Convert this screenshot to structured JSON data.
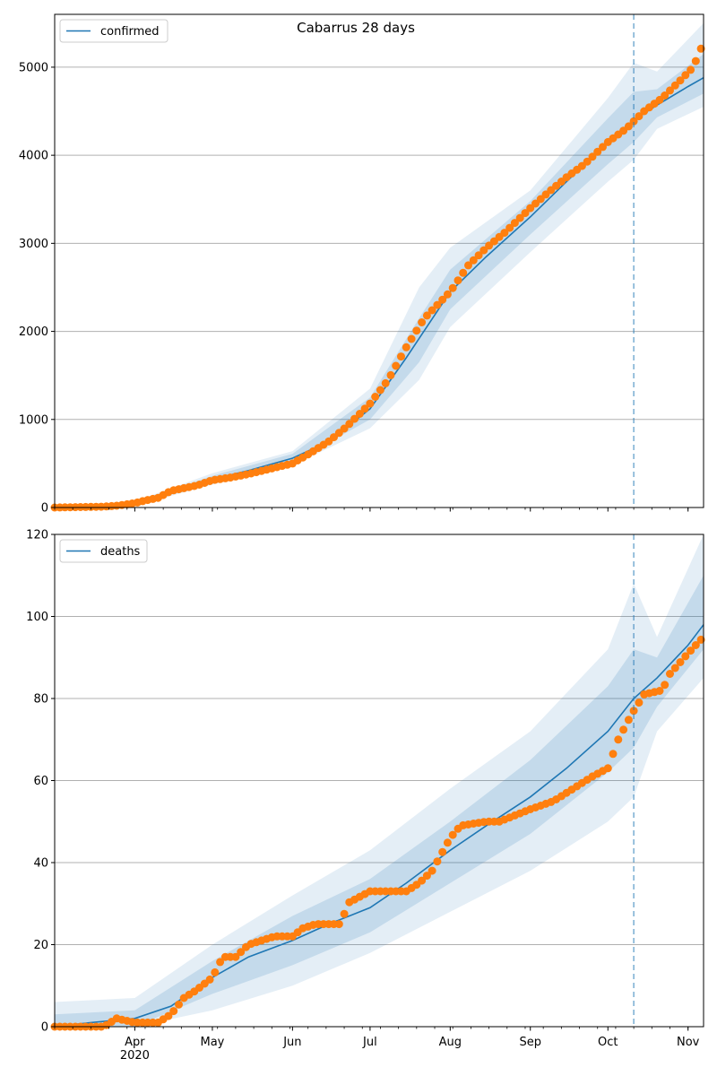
{
  "figure": {
    "title": "Cabarrus 28 days"
  },
  "colors": {
    "model": "#1f77b4",
    "observed": "#ff7f0e",
    "band": "#1f77b4",
    "grid": "#b0b0b0",
    "forecast_line": "#1f77b4"
  },
  "chart_data": [
    {
      "type": "line",
      "title": "",
      "legend": {
        "label": "confirmed",
        "placement": "upper-left"
      },
      "x_ticks": [
        "Apr\n2020",
        "May",
        "Jun",
        "Jul",
        "Aug",
        "Sep",
        "Oct",
        "Nov"
      ],
      "ylim": [
        0,
        5600
      ],
      "y_ticks": [
        0,
        1000,
        2000,
        3000,
        4000,
        5000
      ],
      "xlim": [
        "2020-03-01",
        "2020-11-07"
      ],
      "forecast_start": "2020-10-11",
      "grid": "horizontal",
      "series": [
        {
          "name": "confirmed",
          "kind": "model_median",
          "x": [
            "2020-03-01",
            "2020-03-15",
            "2020-04-01",
            "2020-04-15",
            "2020-05-01",
            "2020-05-15",
            "2020-06-01",
            "2020-06-15",
            "2020-07-01",
            "2020-07-15",
            "2020-08-01",
            "2020-08-15",
            "2020-09-01",
            "2020-09-15",
            "2020-10-01",
            "2020-10-11",
            "2020-10-20",
            "2020-11-01",
            "2020-11-07"
          ],
          "values": [
            0,
            5,
            40,
            160,
            320,
            420,
            560,
            750,
            1120,
            1700,
            2450,
            2850,
            3300,
            3700,
            4150,
            4400,
            4570,
            4780,
            4880
          ]
        },
        {
          "name": "",
          "kind": "observed",
          "x": [
            "2020-03-01",
            "2020-03-10",
            "2020-03-20",
            "2020-03-25",
            "2020-04-01",
            "2020-04-05",
            "2020-04-10",
            "2020-04-15",
            "2020-04-20",
            "2020-04-25",
            "2020-05-01",
            "2020-05-08",
            "2020-05-15",
            "2020-05-22",
            "2020-06-01",
            "2020-06-08",
            "2020-06-15",
            "2020-06-22",
            "2020-07-01",
            "2020-07-08",
            "2020-07-15",
            "2020-07-22",
            "2020-08-01",
            "2020-08-08",
            "2020-08-15",
            "2020-08-22",
            "2020-09-01",
            "2020-09-08",
            "2020-09-15",
            "2020-09-22",
            "2020-10-01",
            "2020-10-08",
            "2020-10-15",
            "2020-10-22",
            "2020-10-29",
            "2020-11-03",
            "2020-11-07"
          ],
          "values": [
            0,
            5,
            10,
            20,
            50,
            80,
            110,
            190,
            220,
            250,
            310,
            340,
            380,
            430,
            500,
            620,
            750,
            920,
            1180,
            1450,
            1820,
            2150,
            2450,
            2750,
            2950,
            3120,
            3400,
            3580,
            3750,
            3900,
            4150,
            4300,
            4500,
            4650,
            4850,
            5000,
            5280
          ]
        }
      ],
      "bands": [
        {
          "level": "outer",
          "x": [
            "2020-03-01",
            "2020-04-01",
            "2020-05-01",
            "2020-06-01",
            "2020-07-01",
            "2020-07-20",
            "2020-08-01",
            "2020-09-01",
            "2020-10-01",
            "2020-10-11",
            "2020-10-20",
            "2020-11-07"
          ],
          "lower": [
            0,
            20,
            260,
            480,
            900,
            1450,
            2050,
            2900,
            3700,
            3950,
            4300,
            4550
          ],
          "upper": [
            0,
            70,
            390,
            640,
            1350,
            2500,
            2950,
            3600,
            4650,
            5050,
            4950,
            5500
          ]
        },
        {
          "level": "inner",
          "x": [
            "2020-03-01",
            "2020-04-01",
            "2020-05-01",
            "2020-06-01",
            "2020-07-01",
            "2020-07-20",
            "2020-08-01",
            "2020-09-01",
            "2020-10-01",
            "2020-10-11",
            "2020-10-20",
            "2020-11-07"
          ],
          "lower": [
            0,
            30,
            290,
            510,
            1000,
            1650,
            2250,
            3100,
            3900,
            4150,
            4430,
            4700
          ],
          "upper": [
            0,
            55,
            360,
            610,
            1250,
            2150,
            2700,
            3480,
            4420,
            4720,
            4750,
            5150
          ]
        }
      ]
    },
    {
      "type": "line",
      "title": "",
      "legend": {
        "label": "deaths",
        "placement": "upper-left"
      },
      "x_ticks": [
        "Apr\n2020",
        "May",
        "Jun",
        "Jul",
        "Aug",
        "Sep",
        "Oct",
        "Nov"
      ],
      "ylim": [
        0,
        120
      ],
      "y_ticks": [
        0,
        20,
        40,
        60,
        80,
        100,
        120
      ],
      "xlim": [
        "2020-03-01",
        "2020-11-07"
      ],
      "forecast_start": "2020-10-11",
      "grid": "horizontal",
      "series": [
        {
          "name": "deaths",
          "kind": "model_median",
          "x": [
            "2020-03-01",
            "2020-03-15",
            "2020-04-01",
            "2020-04-15",
            "2020-05-01",
            "2020-05-15",
            "2020-06-01",
            "2020-06-15",
            "2020-07-01",
            "2020-07-15",
            "2020-08-01",
            "2020-08-15",
            "2020-09-01",
            "2020-09-15",
            "2020-10-01",
            "2020-10-11",
            "2020-10-20",
            "2020-11-01",
            "2020-11-07"
          ],
          "values": [
            0,
            1,
            2,
            5,
            12,
            17,
            21,
            25,
            29,
            35,
            43,
            49,
            56,
            63,
            72,
            80,
            85,
            93,
            98
          ]
        },
        {
          "name": "",
          "kind": "observed",
          "x": [
            "2020-03-01",
            "2020-03-20",
            "2020-03-25",
            "2020-04-01",
            "2020-04-10",
            "2020-04-15",
            "2020-04-20",
            "2020-04-25",
            "2020-05-01",
            "2020-05-05",
            "2020-05-10",
            "2020-05-15",
            "2020-05-20",
            "2020-05-25",
            "2020-06-01",
            "2020-06-05",
            "2020-06-10",
            "2020-06-20",
            "2020-06-22",
            "2020-07-01",
            "2020-07-15",
            "2020-07-20",
            "2020-07-25",
            "2020-08-01",
            "2020-08-05",
            "2020-08-15",
            "2020-08-20",
            "2020-09-01",
            "2020-09-10",
            "2020-09-20",
            "2020-09-25",
            "2020-10-01",
            "2020-10-05",
            "2020-10-10",
            "2020-10-15",
            "2020-10-22",
            "2020-10-25",
            "2020-11-01",
            "2020-11-07"
          ],
          "values": [
            0,
            0,
            2,
            1,
            1,
            3,
            7,
            9,
            12,
            17,
            17,
            20,
            21,
            22,
            22,
            24,
            25,
            25,
            30,
            33,
            33,
            35,
            38,
            46,
            49,
            50,
            50,
            53,
            55,
            59,
            61,
            63,
            70,
            76,
            81,
            82,
            86,
            91,
            95
          ]
        }
      ],
      "bands": [
        {
          "level": "outer",
          "x": [
            "2020-03-01",
            "2020-04-01",
            "2020-05-01",
            "2020-06-01",
            "2020-07-01",
            "2020-08-01",
            "2020-09-01",
            "2020-10-01",
            "2020-10-11",
            "2020-10-20",
            "2020-11-07"
          ],
          "lower": [
            0,
            0,
            4,
            10,
            18,
            28,
            38,
            50,
            56,
            72,
            85
          ],
          "upper": [
            6,
            7,
            20,
            32,
            43,
            58,
            72,
            92,
            108,
            95,
            120
          ]
        },
        {
          "level": "inner",
          "x": [
            "2020-03-01",
            "2020-04-01",
            "2020-05-01",
            "2020-06-01",
            "2020-07-01",
            "2020-08-01",
            "2020-09-01",
            "2020-10-01",
            "2020-10-11",
            "2020-10-20",
            "2020-11-07"
          ],
          "lower": [
            0,
            0,
            8,
            15,
            23,
            35,
            47,
            62,
            68,
            78,
            92
          ],
          "upper": [
            3,
            4,
            16,
            27,
            36,
            50,
            65,
            83,
            92,
            90,
            110
          ]
        }
      ]
    }
  ]
}
